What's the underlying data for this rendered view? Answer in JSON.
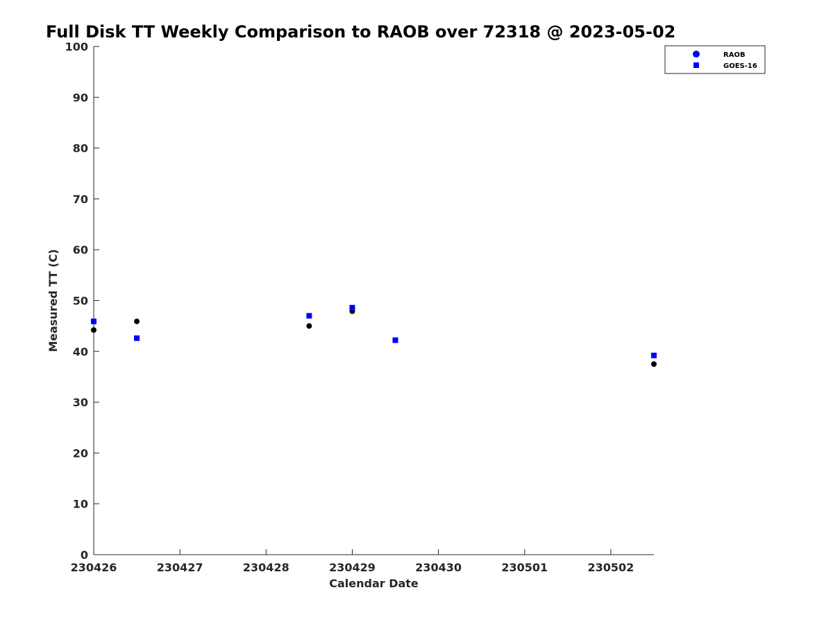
{
  "chart_data": {
    "type": "scatter",
    "title": "Full Disk TT Weekly Comparison to RAOB over 72318 @ 2023-05-02",
    "xlabel": "Calendar Date",
    "ylabel": "Measured TT (C)",
    "xlim": [
      0,
      6.5
    ],
    "ylim": [
      0,
      100
    ],
    "x_ticks": [
      0,
      1,
      2,
      3,
      4,
      5,
      6
    ],
    "x_tick_labels": [
      "230426",
      "230427",
      "230428",
      "230429",
      "230430",
      "230501",
      "230502"
    ],
    "y_ticks": [
      0,
      10,
      20,
      30,
      40,
      50,
      60,
      70,
      80,
      90,
      100
    ],
    "y_tick_labels": [
      "0",
      "10",
      "20",
      "30",
      "40",
      "50",
      "60",
      "70",
      "80",
      "90",
      "100"
    ],
    "grid": false,
    "legend_position": "top-right",
    "series": [
      {
        "name": "RAOB",
        "marker": "circle",
        "legend_color": "#0000ff",
        "point_color": "#000000",
        "x": [
          0,
          0.5,
          2.5,
          3,
          3.5,
          6.5
        ],
        "y": [
          44.2,
          45.9,
          45.0,
          47.9,
          42.2,
          37.5
        ]
      },
      {
        "name": "GOES-16",
        "marker": "square",
        "legend_color": "#0000ff",
        "point_color": "#0000ff",
        "x": [
          0,
          0.5,
          2.5,
          3,
          3.5,
          6.5
        ],
        "y": [
          45.9,
          42.6,
          47.0,
          48.6,
          42.2,
          39.2
        ]
      }
    ]
  }
}
